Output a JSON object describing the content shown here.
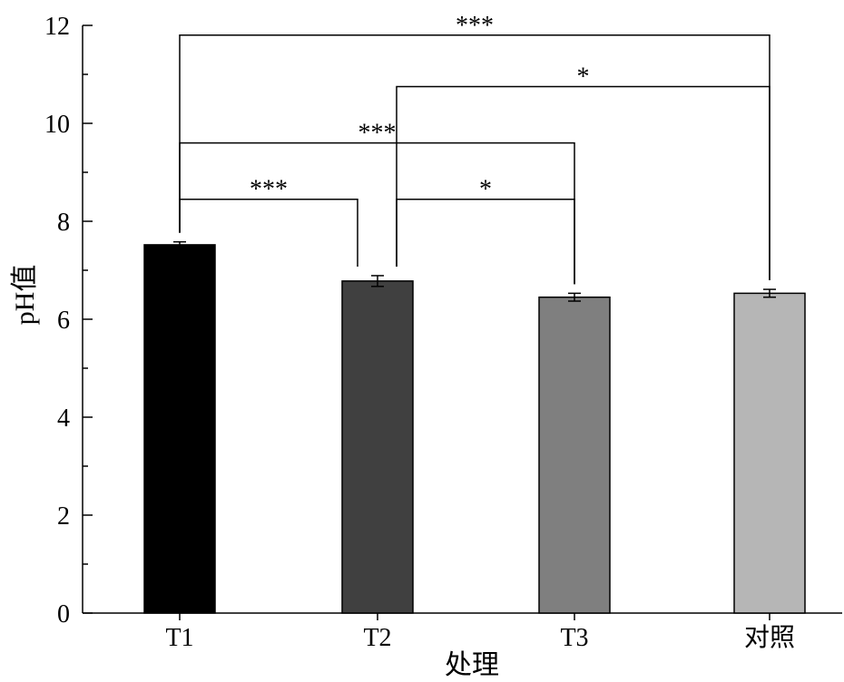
{
  "chart_data": {
    "type": "bar",
    "title": "",
    "xlabel": "处理",
    "ylabel": "pH值",
    "ylim": [
      0,
      12
    ],
    "yticks": [
      0,
      2,
      4,
      6,
      8,
      10,
      12
    ],
    "yminor_step": 1,
    "grid": false,
    "categories": [
      "T1",
      "T2",
      "T3",
      "对照"
    ],
    "values": [
      7.52,
      6.78,
      6.45,
      6.53
    ],
    "errors": [
      0.06,
      0.11,
      0.08,
      0.08
    ],
    "colors": [
      "#000000",
      "#404040",
      "#7f7f7f",
      "#b6b6b6"
    ],
    "significance": [
      {
        "from": "T1",
        "to": "T2",
        "label": "***",
        "y": 8.45
      },
      {
        "from": "T2",
        "to": "T3",
        "label": "*",
        "y": 8.45
      },
      {
        "from": "T1",
        "to": "T3",
        "label": "***",
        "y": 9.6
      },
      {
        "from": "T2",
        "to": "对照",
        "label": "*",
        "y": 10.75
      },
      {
        "from": "T1",
        "to": "对照",
        "label": "***",
        "y": 11.8
      }
    ]
  }
}
